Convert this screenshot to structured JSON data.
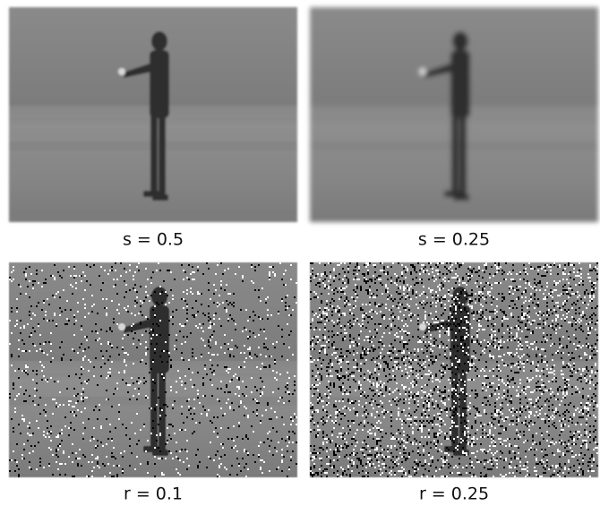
{
  "figure": {
    "panels": [
      {
        "caption": "s = 0.5"
      },
      {
        "caption": "s = 0.25"
      },
      {
        "caption": "r = 0.1"
      },
      {
        "caption": "r = 0.25"
      }
    ]
  }
}
